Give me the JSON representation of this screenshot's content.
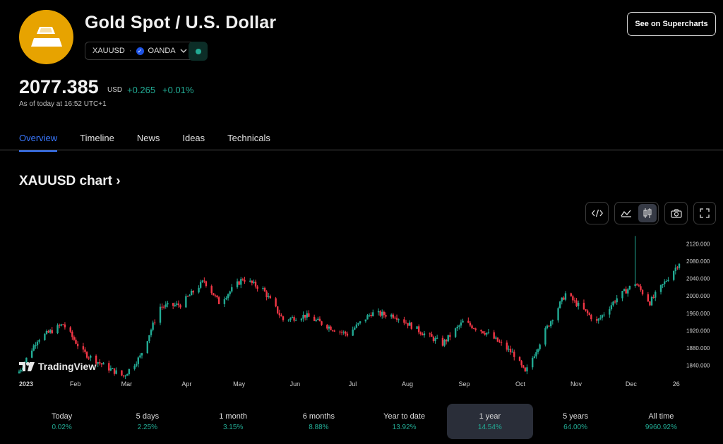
{
  "header": {
    "title": "Gold Spot / U.S. Dollar",
    "symbol": "XAUUSD",
    "separator": "·",
    "exchange": "OANDA",
    "supercharts_label": "See on Supercharts"
  },
  "quote": {
    "price": "2077.385",
    "currency": "USD",
    "change": "+0.265",
    "change_pct": "+0.01%",
    "as_of": "As of today at 16:52 UTC+1"
  },
  "tabs": [
    {
      "label": "Overview"
    },
    {
      "label": "Timeline"
    },
    {
      "label": "News"
    },
    {
      "label": "Ideas"
    },
    {
      "label": "Technicals"
    }
  ],
  "chart_section": {
    "heading": "XAUUSD chart",
    "arrow": "›",
    "watermark": "TradingView"
  },
  "toolbar_icons": [
    "embed-code-icon",
    "line-chart-icon",
    "candlestick-icon",
    "camera-icon",
    "fullscreen-icon"
  ],
  "colors": {
    "accent": "#3a78ff",
    "up": "#22ab94",
    "down": "#f23645",
    "logo": "#e7a300"
  },
  "chart_data": {
    "type": "candlestick",
    "x_ticks": [
      "2023",
      "Feb",
      "Mar",
      "Apr",
      "May",
      "Jun",
      "Jul",
      "Aug",
      "Sep",
      "Oct",
      "Nov",
      "Dec",
      "26"
    ],
    "y_ticks": [
      "2120.000",
      "2080.000",
      "2040.000",
      "2000.000",
      "1960.000",
      "1920.000",
      "1880.000",
      "1840.000"
    ],
    "ylim": [
      1820,
      2145
    ],
    "close_path": [
      [
        "2023-01-02",
        1826
      ],
      [
        "2023-01-12",
        1900
      ],
      [
        "2023-01-26",
        1935
      ],
      [
        "2023-02-06",
        1870
      ],
      [
        "2023-02-17",
        1840
      ],
      [
        "2023-02-28",
        1815
      ],
      [
        "2023-03-09",
        1860
      ],
      [
        "2023-03-20",
        1975
      ],
      [
        "2023-03-31",
        1980
      ],
      [
        "2023-04-13",
        2035
      ],
      [
        "2023-04-21",
        1985
      ],
      [
        "2023-05-04",
        2040
      ],
      [
        "2023-05-15",
        2015
      ],
      [
        "2023-05-26",
        1945
      ],
      [
        "2023-06-07",
        1955
      ],
      [
        "2023-06-22",
        1925
      ],
      [
        "2023-06-30",
        1912
      ],
      [
        "2023-07-13",
        1960
      ],
      [
        "2023-07-26",
        1955
      ],
      [
        "2023-08-10",
        1915
      ],
      [
        "2023-08-21",
        1890
      ],
      [
        "2023-09-01",
        1940
      ],
      [
        "2023-09-14",
        1915
      ],
      [
        "2023-09-29",
        1865
      ],
      [
        "2023-10-05",
        1822
      ],
      [
        "2023-10-16",
        1920
      ],
      [
        "2023-10-27",
        2005
      ],
      [
        "2023-11-13",
        1940
      ],
      [
        "2023-11-24",
        1995
      ],
      [
        "2023-12-04",
        2030
      ],
      [
        "2023-12-12",
        1985
      ],
      [
        "2023-12-26",
        2065
      ],
      [
        "2023-12-28",
        2077.385
      ]
    ],
    "spike": {
      "date": "2023-12-04",
      "high": 2138
    }
  },
  "periods": [
    {
      "label": "Today",
      "value": "0.02%"
    },
    {
      "label": "5 days",
      "value": "2.25%"
    },
    {
      "label": "1 month",
      "value": "3.15%"
    },
    {
      "label": "6 months",
      "value": "8.88%"
    },
    {
      "label": "Year to date",
      "value": "13.92%"
    },
    {
      "label": "1 year",
      "value": "14.54%"
    },
    {
      "label": "5 years",
      "value": "64.00%"
    },
    {
      "label": "All time",
      "value": "9960.92%"
    }
  ],
  "selected_period": "1 year"
}
